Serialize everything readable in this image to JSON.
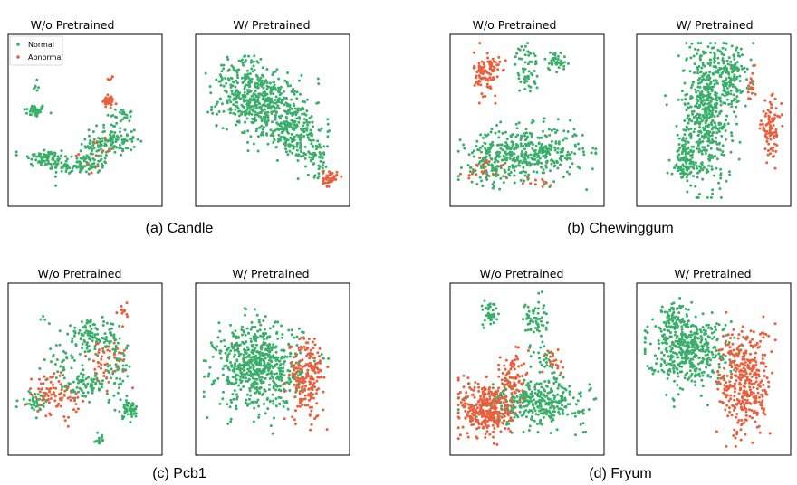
{
  "figure": {
    "colors": {
      "normal": "#3aaf6a",
      "abnormal": "#ea5f3c"
    },
    "legend": {
      "normal_label": "Normal",
      "abnormal_label": "Abnormal"
    },
    "captions": [
      "(a) Candle",
      "(b) Chewinggum",
      "(c) Pcb1",
      "(d) Fryum"
    ]
  },
  "chart_data": [
    {
      "type": "scatter",
      "title": "W/o Pretrained",
      "group": "(a) Candle",
      "legend_placement": "top-left",
      "series": [
        {
          "name": "Normal",
          "clusters": [
            {
              "cx": 0.15,
              "cy": 0.56,
              "sx": 0.04,
              "sy": 0.02,
              "n": 40
            },
            {
              "cx": 0.25,
              "cy": 0.24,
              "sx": 0.04,
              "sy": 0.025,
              "n": 20
            },
            {
              "cx": 0.75,
              "cy": 0.54,
              "sx": 0.05,
              "sy": 0.02,
              "n": 20
            },
            {
              "cx": 0.15,
              "cy": 0.72,
              "sx": 0.02,
              "sy": 0.02,
              "n": 6
            },
            {
              "cx": 0.22,
              "cy": 0.27,
              "sx": 0.08,
              "sy": 0.03,
              "n": 55
            },
            {
              "cx": 0.45,
              "cy": 0.22,
              "sx": 0.1,
              "sy": 0.03,
              "n": 90
            },
            {
              "cx": 0.7,
              "cy": 0.38,
              "sx": 0.08,
              "sy": 0.05,
              "n": 110
            },
            {
              "cx": 0.55,
              "cy": 0.28,
              "sx": 0.05,
              "sy": 0.05,
              "n": 40
            }
          ]
        },
        {
          "name": "Abnormal",
          "clusters": [
            {
              "cx": 0.66,
              "cy": 0.62,
              "sx": 0.02,
              "sy": 0.015,
              "n": 40
            },
            {
              "cx": 0.68,
              "cy": 0.76,
              "sx": 0.01,
              "sy": 0.01,
              "n": 5
            },
            {
              "cx": 0.62,
              "cy": 0.3,
              "sx": 0.08,
              "sy": 0.05,
              "n": 12
            }
          ]
        }
      ]
    },
    {
      "type": "scatter",
      "title": "W/ Pretrained",
      "group": "(a) Candle",
      "series": [
        {
          "name": "Normal",
          "clusters": [
            {
              "cx": 0.4,
              "cy": 0.62,
              "sx": 0.14,
              "sy": 0.08,
              "n": 380
            },
            {
              "cx": 0.62,
              "cy": 0.45,
              "sx": 0.12,
              "sy": 0.09,
              "n": 260
            },
            {
              "cx": 0.3,
              "cy": 0.8,
              "sx": 0.1,
              "sy": 0.06,
              "n": 80
            },
            {
              "cx": 0.8,
              "cy": 0.28,
              "sx": 0.06,
              "sy": 0.06,
              "n": 60
            }
          ]
        },
        {
          "name": "Abnormal",
          "clusters": [
            {
              "cx": 0.9,
              "cy": 0.14,
              "sx": 0.025,
              "sy": 0.025,
              "n": 40
            }
          ]
        }
      ]
    },
    {
      "type": "scatter",
      "title": "W/o Pretrained",
      "group": "(b) Chewinggum",
      "series": [
        {
          "name": "Normal",
          "clusters": [
            {
              "cx": 0.5,
              "cy": 0.3,
              "sx": 0.2,
              "sy": 0.08,
              "n": 420
            },
            {
              "cx": 0.22,
              "cy": 0.22,
              "sx": 0.06,
              "sy": 0.06,
              "n": 60
            },
            {
              "cx": 0.5,
              "cy": 0.82,
              "sx": 0.04,
              "sy": 0.08,
              "n": 60
            },
            {
              "cx": 0.7,
              "cy": 0.87,
              "sx": 0.04,
              "sy": 0.03,
              "n": 40
            }
          ]
        },
        {
          "name": "Abnormal",
          "clusters": [
            {
              "cx": 0.22,
              "cy": 0.79,
              "sx": 0.045,
              "sy": 0.07,
              "n": 110
            },
            {
              "cx": 0.22,
              "cy": 0.2,
              "sx": 0.08,
              "sy": 0.04,
              "n": 22
            },
            {
              "cx": 0.55,
              "cy": 0.12,
              "sx": 0.05,
              "sy": 0.03,
              "n": 10
            }
          ]
        }
      ]
    },
    {
      "type": "scatter",
      "title": "W/ Pretrained",
      "group": "(b) Chewinggum",
      "series": [
        {
          "name": "Normal",
          "clusters": [
            {
              "cx": 0.45,
              "cy": 0.55,
              "sx": 0.09,
              "sy": 0.22,
              "n": 520
            },
            {
              "cx": 0.62,
              "cy": 0.78,
              "sx": 0.07,
              "sy": 0.08,
              "n": 140
            },
            {
              "cx": 0.3,
              "cy": 0.25,
              "sx": 0.05,
              "sy": 0.08,
              "n": 100
            }
          ]
        },
        {
          "name": "Abnormal",
          "clusters": [
            {
              "cx": 0.9,
              "cy": 0.45,
              "sx": 0.035,
              "sy": 0.08,
              "n": 90
            },
            {
              "cx": 0.76,
              "cy": 0.7,
              "sx": 0.015,
              "sy": 0.05,
              "n": 18
            }
          ]
        }
      ]
    },
    {
      "type": "scatter",
      "title": "W/o Pretrained",
      "group": "(c) Pcb1",
      "series": [
        {
          "name": "Normal",
          "clusters": [
            {
              "cx": 0.55,
              "cy": 0.7,
              "sx": 0.1,
              "sy": 0.05,
              "n": 120
            },
            {
              "cx": 0.72,
              "cy": 0.5,
              "sx": 0.05,
              "sy": 0.09,
              "n": 60
            },
            {
              "cx": 0.5,
              "cy": 0.4,
              "sx": 0.08,
              "sy": 0.04,
              "n": 80
            },
            {
              "cx": 0.15,
              "cy": 0.3,
              "sx": 0.05,
              "sy": 0.03,
              "n": 40
            },
            {
              "cx": 0.8,
              "cy": 0.25,
              "sx": 0.04,
              "sy": 0.03,
              "n": 50
            },
            {
              "cx": 0.35,
              "cy": 0.55,
              "sx": 0.05,
              "sy": 0.05,
              "n": 30
            },
            {
              "cx": 0.6,
              "cy": 0.06,
              "sx": 0.015,
              "sy": 0.015,
              "n": 14
            },
            {
              "cx": 0.2,
              "cy": 0.82,
              "sx": 0.01,
              "sy": 0.01,
              "n": 3
            }
          ]
        },
        {
          "name": "Abnormal",
          "clusters": [
            {
              "cx": 0.3,
              "cy": 0.32,
              "sx": 0.08,
              "sy": 0.05,
              "n": 70
            },
            {
              "cx": 0.65,
              "cy": 0.55,
              "sx": 0.07,
              "sy": 0.08,
              "n": 45
            },
            {
              "cx": 0.77,
              "cy": 0.86,
              "sx": 0.02,
              "sy": 0.03,
              "n": 12
            },
            {
              "cx": 0.25,
              "cy": 0.42,
              "sx": 0.05,
              "sy": 0.05,
              "n": 15
            }
          ]
        }
      ]
    },
    {
      "type": "scatter",
      "title": "W/ Pretrained",
      "group": "(c) Pcb1",
      "series": [
        {
          "name": "Normal",
          "clusters": [
            {
              "cx": 0.4,
              "cy": 0.52,
              "sx": 0.15,
              "sy": 0.13,
              "n": 650
            }
          ]
        },
        {
          "name": "Abnormal",
          "clusters": [
            {
              "cx": 0.74,
              "cy": 0.45,
              "sx": 0.06,
              "sy": 0.13,
              "n": 200
            }
          ]
        }
      ]
    },
    {
      "type": "scatter",
      "title": "W/o Pretrained",
      "group": "(d) Fryum",
      "series": [
        {
          "name": "Normal",
          "clusters": [
            {
              "cx": 0.55,
              "cy": 0.3,
              "sx": 0.18,
              "sy": 0.07,
              "n": 380
            },
            {
              "cx": 0.25,
              "cy": 0.85,
              "sx": 0.03,
              "sy": 0.04,
              "n": 40
            },
            {
              "cx": 0.55,
              "cy": 0.8,
              "sx": 0.04,
              "sy": 0.07,
              "n": 60
            },
            {
              "cx": 0.62,
              "cy": 0.58,
              "sx": 0.03,
              "sy": 0.04,
              "n": 20
            }
          ]
        },
        {
          "name": "Abnormal",
          "clusters": [
            {
              "cx": 0.22,
              "cy": 0.25,
              "sx": 0.09,
              "sy": 0.09,
              "n": 330
            },
            {
              "cx": 0.4,
              "cy": 0.45,
              "sx": 0.04,
              "sy": 0.09,
              "n": 80
            },
            {
              "cx": 0.68,
              "cy": 0.55,
              "sx": 0.04,
              "sy": 0.04,
              "n": 20
            }
          ]
        }
      ]
    },
    {
      "type": "scatter",
      "title": "W/ Pretrained",
      "group": "(d) Fryum",
      "series": [
        {
          "name": "Normal",
          "clusters": [
            {
              "cx": 0.32,
              "cy": 0.62,
              "sx": 0.14,
              "sy": 0.1,
              "n": 450
            },
            {
              "cx": 0.22,
              "cy": 0.82,
              "sx": 0.05,
              "sy": 0.06,
              "n": 70
            }
          ]
        },
        {
          "name": "Abnormal",
          "clusters": [
            {
              "cx": 0.72,
              "cy": 0.42,
              "sx": 0.09,
              "sy": 0.17,
              "n": 380
            }
          ]
        }
      ]
    }
  ]
}
